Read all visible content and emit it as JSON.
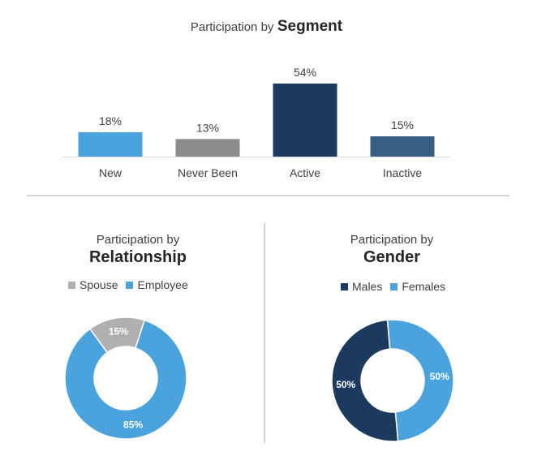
{
  "segment_title": {
    "prefix": "Participation by",
    "emphasis": "Segment"
  },
  "relationship_title": {
    "line1": "Participation by",
    "line2": "Relationship"
  },
  "gender_title": {
    "line1": "Participation by",
    "line2": "Gender"
  },
  "colors": {
    "light_blue": "#4aa3dc",
    "gray": "#8c8c8c",
    "dark_navy": "#1c3a5e",
    "steel_blue": "#3a5f86",
    "spouse_gray": "#b0b0b0",
    "divider": "#a6a6a6",
    "axis": "#d9d9d9"
  },
  "chart_data": [
    {
      "type": "bar",
      "title": "Participation by Segment",
      "categories": [
        "New",
        "Never Been",
        "Active",
        "Inactive"
      ],
      "values": [
        18,
        13,
        54,
        15
      ],
      "data_labels": [
        "18%",
        "13%",
        "54%",
        "15%"
      ],
      "colors": [
        "#4aa3dc",
        "#8c8c8c",
        "#1c3a5e",
        "#3a5f86"
      ],
      "ylim": [
        0,
        54
      ],
      "grid": false
    },
    {
      "type": "pie",
      "variant": "donut",
      "title": "Participation by Relationship",
      "legend": [
        "Spouse",
        "Employee"
      ],
      "legend_placement": "top",
      "slices": [
        {
          "label": "Spouse",
          "value": 15,
          "display": "15%",
          "color": "#b0b0b0"
        },
        {
          "label": "Employee",
          "value": 85,
          "display": "85%",
          "color": "#4aa3dc"
        }
      ]
    },
    {
      "type": "pie",
      "variant": "donut",
      "title": "Participation by Gender",
      "legend": [
        "Males",
        "Females"
      ],
      "legend_placement": "top",
      "slices": [
        {
          "label": "Females",
          "value": 50,
          "display": "50%",
          "color": "#4aa3dc"
        },
        {
          "label": "Males",
          "value": 50,
          "display": "50%",
          "color": "#1c3a5e"
        }
      ]
    }
  ]
}
